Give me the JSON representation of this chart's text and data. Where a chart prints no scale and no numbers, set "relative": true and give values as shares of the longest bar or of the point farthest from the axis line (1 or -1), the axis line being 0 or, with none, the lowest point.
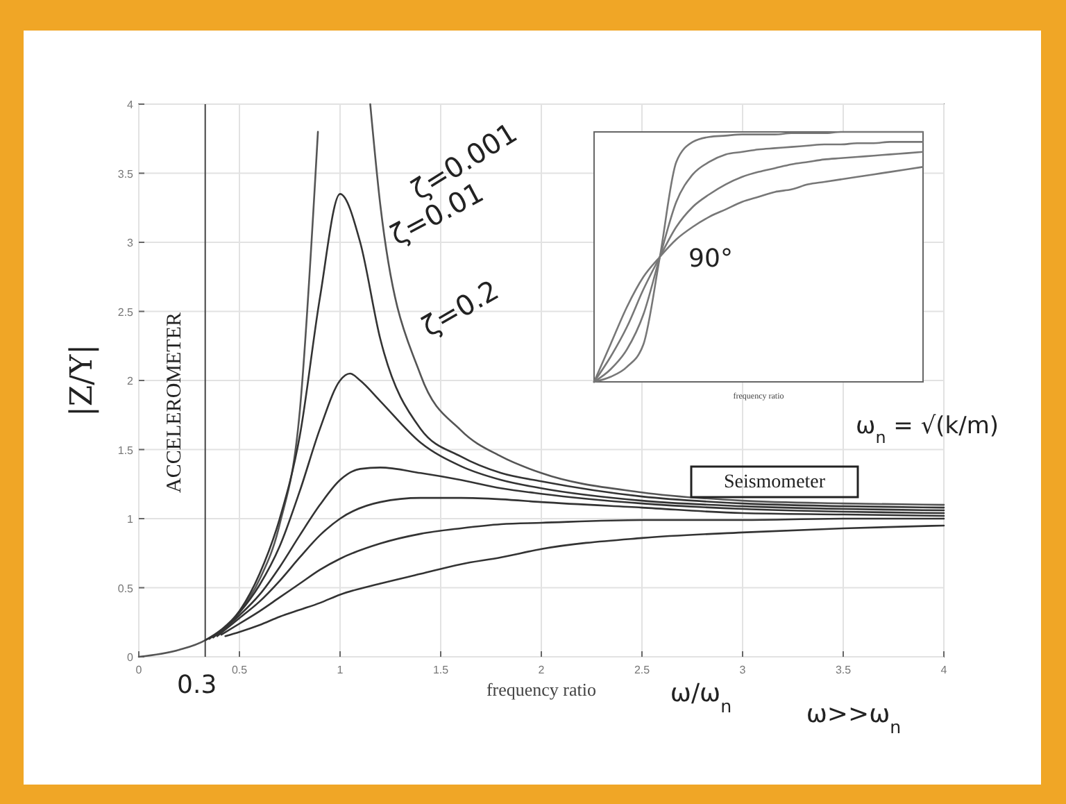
{
  "chart_data": [
    {
      "type": "line",
      "xlabel": "frequency ratio",
      "ylabel": "|Z/Y|",
      "xlim": [
        0,
        4
      ],
      "ylim": [
        0,
        4
      ],
      "xticks": [
        0,
        0.5,
        1,
        1.5,
        2,
        2.5,
        3,
        3.5,
        4
      ],
      "yticks": [
        0,
        0.5,
        1,
        1.5,
        2,
        2.5,
        3,
        3.5,
        4
      ],
      "grid": true,
      "line_style": "solid",
      "ref_lines": [
        {
          "axis": "x",
          "value": 0.33,
          "label": "0.3",
          "color": "#444444"
        }
      ],
      "annotations": [
        "ζ=0.001",
        "ζ=0.01",
        "ζ=0.2",
        "ACCELEROMETER",
        "Seismometer",
        "ω/ω$_{n}$",
        "ω>>ω$_{n}$",
        "ω$_{n}$ = √(k/m)",
        "90°"
      ],
      "series": [
        {
          "color": "#555555",
          "x": [
            0,
            0.2,
            0.33,
            0.5,
            0.6,
            0.7,
            0.8,
            0.89,
            1.0,
            1.15,
            1.2,
            1.4,
            1.6,
            1.8,
            2,
            2.5,
            3,
            3.5,
            4
          ],
          "values": [
            0,
            0.05,
            0.12,
            0.33,
            0.56,
            0.96,
            1.78,
            3.8,
            null,
            4.0,
            3.27,
            2.04,
            1.64,
            1.45,
            1.33,
            1.19,
            1.13,
            1.11,
            1.1
          ]
        },
        {
          "color": "#333333",
          "x": [
            0.33,
            0.5,
            0.6,
            0.7,
            0.8,
            0.9,
            1.0,
            1.1,
            1.2,
            1.4,
            1.6,
            1.8,
            2,
            2.5,
            3,
            3.5,
            4
          ],
          "values": [
            0.12,
            0.33,
            0.6,
            1.0,
            1.6,
            2.6,
            3.35,
            3.0,
            2.3,
            1.65,
            1.45,
            1.33,
            1.27,
            1.16,
            1.11,
            1.09,
            1.08
          ]
        },
        {
          "color": "#333333",
          "x": [
            0.35,
            0.5,
            0.6,
            0.7,
            0.8,
            0.9,
            1.0,
            1.05,
            1.1,
            1.2,
            1.4,
            1.6,
            1.8,
            2,
            2.5,
            3,
            3.5,
            4
          ],
          "values": [
            0.13,
            0.32,
            0.52,
            0.8,
            1.2,
            1.65,
            2.0,
            2.05,
            2.0,
            1.85,
            1.55,
            1.38,
            1.28,
            1.22,
            1.13,
            1.09,
            1.07,
            1.06
          ]
        },
        {
          "color": "#333333",
          "x": [
            0.37,
            0.5,
            0.6,
            0.7,
            0.8,
            0.9,
            1.0,
            1.1,
            1.2,
            1.4,
            1.6,
            1.8,
            2,
            2.5,
            3,
            3.5,
            4
          ],
          "values": [
            0.14,
            0.3,
            0.45,
            0.65,
            0.88,
            1.1,
            1.28,
            1.36,
            1.37,
            1.33,
            1.28,
            1.22,
            1.18,
            1.11,
            1.07,
            1.05,
            1.04
          ]
        },
        {
          "color": "#333333",
          "x": [
            0.39,
            0.5,
            0.6,
            0.7,
            0.8,
            0.9,
            1.0,
            1.2,
            1.4,
            1.6,
            1.8,
            2,
            2.5,
            3,
            3.5,
            4
          ],
          "values": [
            0.15,
            0.28,
            0.4,
            0.55,
            0.72,
            0.88,
            1.0,
            1.12,
            1.15,
            1.15,
            1.14,
            1.12,
            1.08,
            1.04,
            1.03,
            1.02
          ]
        },
        {
          "color": "#333333",
          "x": [
            0.41,
            0.5,
            0.6,
            0.7,
            0.8,
            0.9,
            1.0,
            1.2,
            1.4,
            1.6,
            1.8,
            2,
            2.5,
            3,
            3.5,
            4
          ],
          "values": [
            0.16,
            0.24,
            0.33,
            0.43,
            0.53,
            0.63,
            0.71,
            0.82,
            0.89,
            0.93,
            0.96,
            0.97,
            0.99,
            0.99,
            1.0,
            1.0
          ]
        },
        {
          "color": "#333333",
          "x": [
            0.43,
            0.5,
            0.6,
            0.7,
            0.8,
            0.9,
            1.0,
            1.2,
            1.4,
            1.6,
            1.8,
            2,
            2.5,
            3,
            3.5,
            4
          ],
          "values": [
            0.15,
            0.18,
            0.23,
            0.29,
            0.34,
            0.39,
            0.45,
            0.53,
            0.6,
            0.67,
            0.72,
            0.78,
            0.86,
            0.9,
            0.93,
            0.95
          ]
        }
      ]
    },
    {
      "type": "line",
      "relative": true,
      "xlabel": "frequency ratio",
      "categories": [
        null,
        null,
        null,
        null,
        null,
        null,
        null,
        null,
        null,
        null,
        null,
        null,
        null,
        null,
        null,
        null,
        null,
        null,
        null,
        null,
        null
      ],
      "series": [
        {
          "color": "#777777",
          "values": [
            0,
            0.02,
            0.06,
            0.15,
            0.5,
            0.88,
            0.96,
            0.98,
            0.985,
            0.99,
            0.99,
            0.99,
            0.995,
            0.995,
            0.995,
            1,
            1,
            1,
            1,
            1,
            1
          ]
        },
        {
          "color": "#777777",
          "values": [
            0,
            0.05,
            0.13,
            0.27,
            0.5,
            0.72,
            0.83,
            0.88,
            0.91,
            0.92,
            0.93,
            0.935,
            0.94,
            0.945,
            0.95,
            0.95,
            0.955,
            0.955,
            0.96,
            0.96,
            0.96
          ]
        },
        {
          "color": "#777777",
          "values": [
            0,
            0.1,
            0.22,
            0.37,
            0.5,
            0.62,
            0.7,
            0.75,
            0.79,
            0.82,
            0.84,
            0.855,
            0.87,
            0.88,
            0.89,
            0.895,
            0.9,
            0.905,
            0.91,
            0.915,
            0.92
          ]
        },
        {
          "color": "#777777",
          "values": [
            0,
            0.15,
            0.3,
            0.42,
            0.5,
            0.57,
            0.62,
            0.66,
            0.69,
            0.72,
            0.74,
            0.76,
            0.77,
            0.79,
            0.8,
            0.81,
            0.82,
            0.83,
            0.84,
            0.85,
            0.86
          ]
        }
      ]
    }
  ]
}
